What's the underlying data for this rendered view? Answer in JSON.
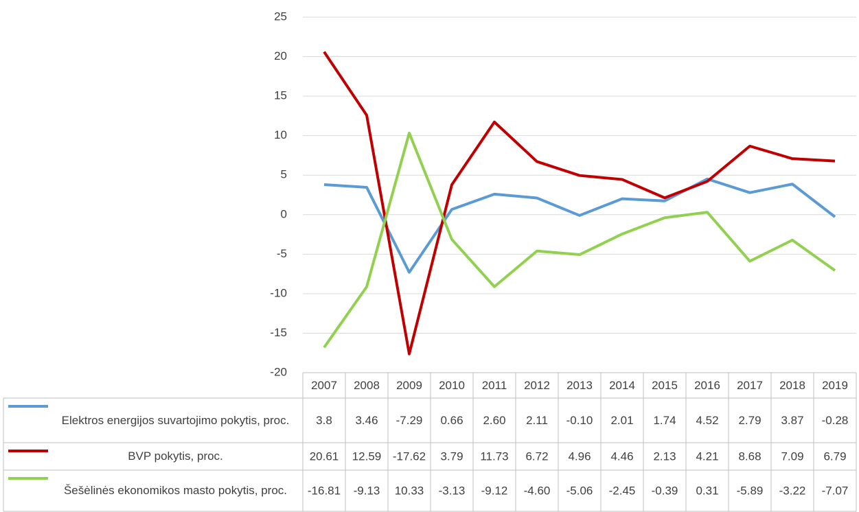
{
  "chart_data": {
    "type": "line",
    "categories": [
      "2007",
      "2008",
      "2009",
      "2010",
      "2011",
      "2012",
      "2013",
      "2014",
      "2015",
      "2016",
      "2017",
      "2018",
      "2019"
    ],
    "series": [
      {
        "name": "Elektros energijos suvartojimo pokytis, proc.",
        "color": "#5b9bd5",
        "values": [
          3.8,
          3.46,
          -7.29,
          0.66,
          2.6,
          2.11,
          -0.1,
          2.01,
          1.74,
          4.52,
          2.79,
          3.87,
          -0.28
        ],
        "value_labels": [
          "3.8",
          "3.46",
          "-7.29",
          "0.66",
          "2.60",
          "2.11",
          "-0.10",
          "2.01",
          "1.74",
          "4.52",
          "2.79",
          "3.87",
          "-0.28"
        ]
      },
      {
        "name": "BVP pokytis, proc.",
        "color": "#c00000",
        "values": [
          20.61,
          12.59,
          -17.62,
          3.79,
          11.73,
          6.72,
          4.96,
          4.46,
          2.13,
          4.21,
          8.68,
          7.09,
          6.79
        ],
        "value_labels": [
          "20.61",
          "12.59",
          "-17.62",
          "3.79",
          "11.73",
          "6.72",
          "4.96",
          "4.46",
          "2.13",
          "4.21",
          "8.68",
          "7.09",
          "6.79"
        ]
      },
      {
        "name": "Šešėlinės ekonomikos masto pokytis, proc.",
        "color": "#92d050",
        "values": [
          -16.81,
          -9.13,
          10.33,
          -3.13,
          -9.12,
          -4.6,
          -5.06,
          -2.45,
          -0.39,
          0.31,
          -5.89,
          -3.22,
          -7.07
        ],
        "value_labels": [
          "-16.81",
          "-9.13",
          "10.33",
          "-3.13",
          "-9.12",
          "-4.60",
          "-5.06",
          "-2.45",
          "-0.39",
          "0.31",
          "-5.89",
          "-3.22",
          "-7.07"
        ]
      }
    ],
    "ylim": [
      -20,
      25
    ],
    "yticks": [
      -20,
      -15,
      -10,
      -5,
      0,
      5,
      10,
      15,
      20,
      25
    ],
    "grid": true
  }
}
